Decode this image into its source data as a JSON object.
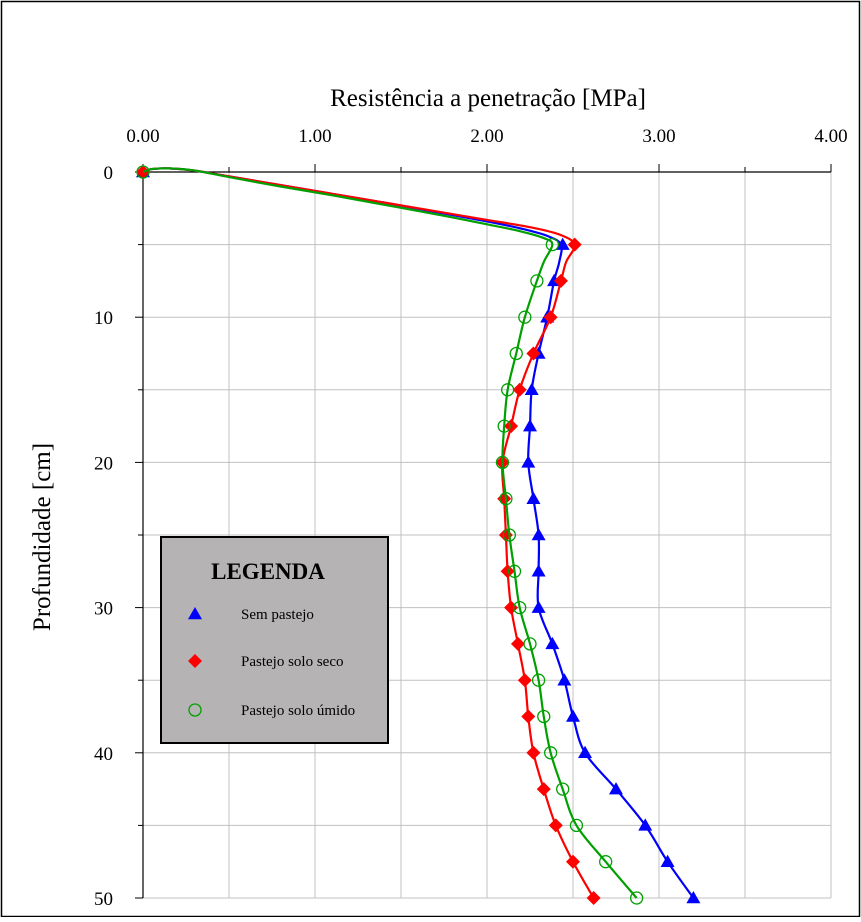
{
  "chart_data": {
    "type": "line",
    "title": "Resistência a penetração [MPa]",
    "xlabel": "Resistência a penetração [MPa]",
    "ylabel": "Profundidade [cm]",
    "xlim": [
      0,
      4
    ],
    "ylim": [
      0,
      50
    ],
    "x_axis_position": "top",
    "y_inverted": true,
    "grid": true,
    "x_ticks": [
      0,
      1,
      2,
      3,
      4
    ],
    "x_tick_labels": [
      "0.00",
      "1.00",
      "2.00",
      "3.00",
      "4.00"
    ],
    "y_ticks": [
      0,
      10,
      20,
      30,
      40,
      50
    ],
    "y_tick_labels": [
      "0",
      "10",
      "20",
      "30",
      "40",
      "50"
    ],
    "legend": {
      "title": "LEGENDA",
      "placement": "lower-left",
      "background": "#b5b3b3"
    },
    "series": [
      {
        "name": "Sem pastejo",
        "color": "#0000ff",
        "marker": "triangle",
        "curve_x": [
          0,
          0.05,
          0.15,
          0.3,
          0.5,
          0.8,
          1.1,
          1.4,
          1.7,
          2.0,
          2.2,
          2.35,
          2.43,
          2.42,
          2.39
        ],
        "curve_y": [
          0,
          -0.2,
          -0.25,
          -0.1,
          0.3,
          0.9,
          1.5,
          2.1,
          2.75,
          3.4,
          3.9,
          4.4,
          5,
          6.2,
          7.5
        ],
        "points": [
          {
            "x": 0.0,
            "depth": 0
          },
          {
            "x": 2.44,
            "depth": 5
          },
          {
            "x": 2.39,
            "depth": 7.5
          },
          {
            "x": 2.35,
            "depth": 10
          },
          {
            "x": 2.3,
            "depth": 12.5
          },
          {
            "x": 2.26,
            "depth": 15
          },
          {
            "x": 2.25,
            "depth": 17.5
          },
          {
            "x": 2.24,
            "depth": 20
          },
          {
            "x": 2.27,
            "depth": 22.5
          },
          {
            "x": 2.3,
            "depth": 25
          },
          {
            "x": 2.3,
            "depth": 27.5
          },
          {
            "x": 2.3,
            "depth": 30
          },
          {
            "x": 2.38,
            "depth": 32.5
          },
          {
            "x": 2.45,
            "depth": 35
          },
          {
            "x": 2.5,
            "depth": 37.5
          },
          {
            "x": 2.57,
            "depth": 40
          },
          {
            "x": 2.75,
            "depth": 42.5
          },
          {
            "x": 2.92,
            "depth": 45
          },
          {
            "x": 3.05,
            "depth": 47.5
          },
          {
            "x": 3.2,
            "depth": 50
          }
        ]
      },
      {
        "name": "Pastejo solo seco",
        "color": "#ff0000",
        "marker": "diamond",
        "curve_x": [
          0,
          0.05,
          0.15,
          0.3,
          0.5,
          0.8,
          1.1,
          1.4,
          1.7,
          2.0,
          2.25,
          2.42,
          2.51,
          2.46,
          2.43
        ],
        "curve_y": [
          0,
          -0.2,
          -0.25,
          -0.1,
          0.3,
          0.9,
          1.5,
          2.1,
          2.7,
          3.3,
          3.8,
          4.3,
          5,
          6.2,
          7.5
        ],
        "points": [
          {
            "x": 0.0,
            "depth": 0
          },
          {
            "x": 2.51,
            "depth": 5
          },
          {
            "x": 2.43,
            "depth": 7.5
          },
          {
            "x": 2.37,
            "depth": 10
          },
          {
            "x": 2.27,
            "depth": 12.5
          },
          {
            "x": 2.19,
            "depth": 15
          },
          {
            "x": 2.14,
            "depth": 17.5
          },
          {
            "x": 2.09,
            "depth": 20
          },
          {
            "x": 2.1,
            "depth": 22.5
          },
          {
            "x": 2.11,
            "depth": 25
          },
          {
            "x": 2.12,
            "depth": 27.5
          },
          {
            "x": 2.14,
            "depth": 30
          },
          {
            "x": 2.18,
            "depth": 32.5
          },
          {
            "x": 2.22,
            "depth": 35
          },
          {
            "x": 2.24,
            "depth": 37.5
          },
          {
            "x": 2.27,
            "depth": 40
          },
          {
            "x": 2.33,
            "depth": 42.5
          },
          {
            "x": 2.4,
            "depth": 45
          },
          {
            "x": 2.5,
            "depth": 47.5
          },
          {
            "x": 2.62,
            "depth": 50
          }
        ]
      },
      {
        "name": "Pastejo solo úmido",
        "color": "#00a000",
        "marker": "circle-open",
        "curve_x": [
          0,
          0.05,
          0.15,
          0.3,
          0.5,
          0.8,
          1.1,
          1.4,
          1.7,
          2.0,
          2.2,
          2.33,
          2.38,
          2.33,
          2.29
        ],
        "curve_y": [
          0,
          -0.2,
          -0.25,
          -0.1,
          0.35,
          1.0,
          1.6,
          2.25,
          2.9,
          3.6,
          4.1,
          4.55,
          5,
          6.2,
          7.5
        ],
        "points": [
          {
            "x": 0.0,
            "depth": 0
          },
          {
            "x": 2.38,
            "depth": 5
          },
          {
            "x": 2.29,
            "depth": 7.5
          },
          {
            "x": 2.22,
            "depth": 10
          },
          {
            "x": 2.17,
            "depth": 12.5
          },
          {
            "x": 2.12,
            "depth": 15
          },
          {
            "x": 2.1,
            "depth": 17.5
          },
          {
            "x": 2.09,
            "depth": 20
          },
          {
            "x": 2.11,
            "depth": 22.5
          },
          {
            "x": 2.13,
            "depth": 25
          },
          {
            "x": 2.16,
            "depth": 27.5
          },
          {
            "x": 2.19,
            "depth": 30
          },
          {
            "x": 2.25,
            "depth": 32.5
          },
          {
            "x": 2.3,
            "depth": 35
          },
          {
            "x": 2.33,
            "depth": 37.5
          },
          {
            "x": 2.37,
            "depth": 40
          },
          {
            "x": 2.44,
            "depth": 42.5
          },
          {
            "x": 2.52,
            "depth": 45
          },
          {
            "x": 2.69,
            "depth": 47.5
          },
          {
            "x": 2.87,
            "depth": 50
          }
        ]
      }
    ]
  }
}
